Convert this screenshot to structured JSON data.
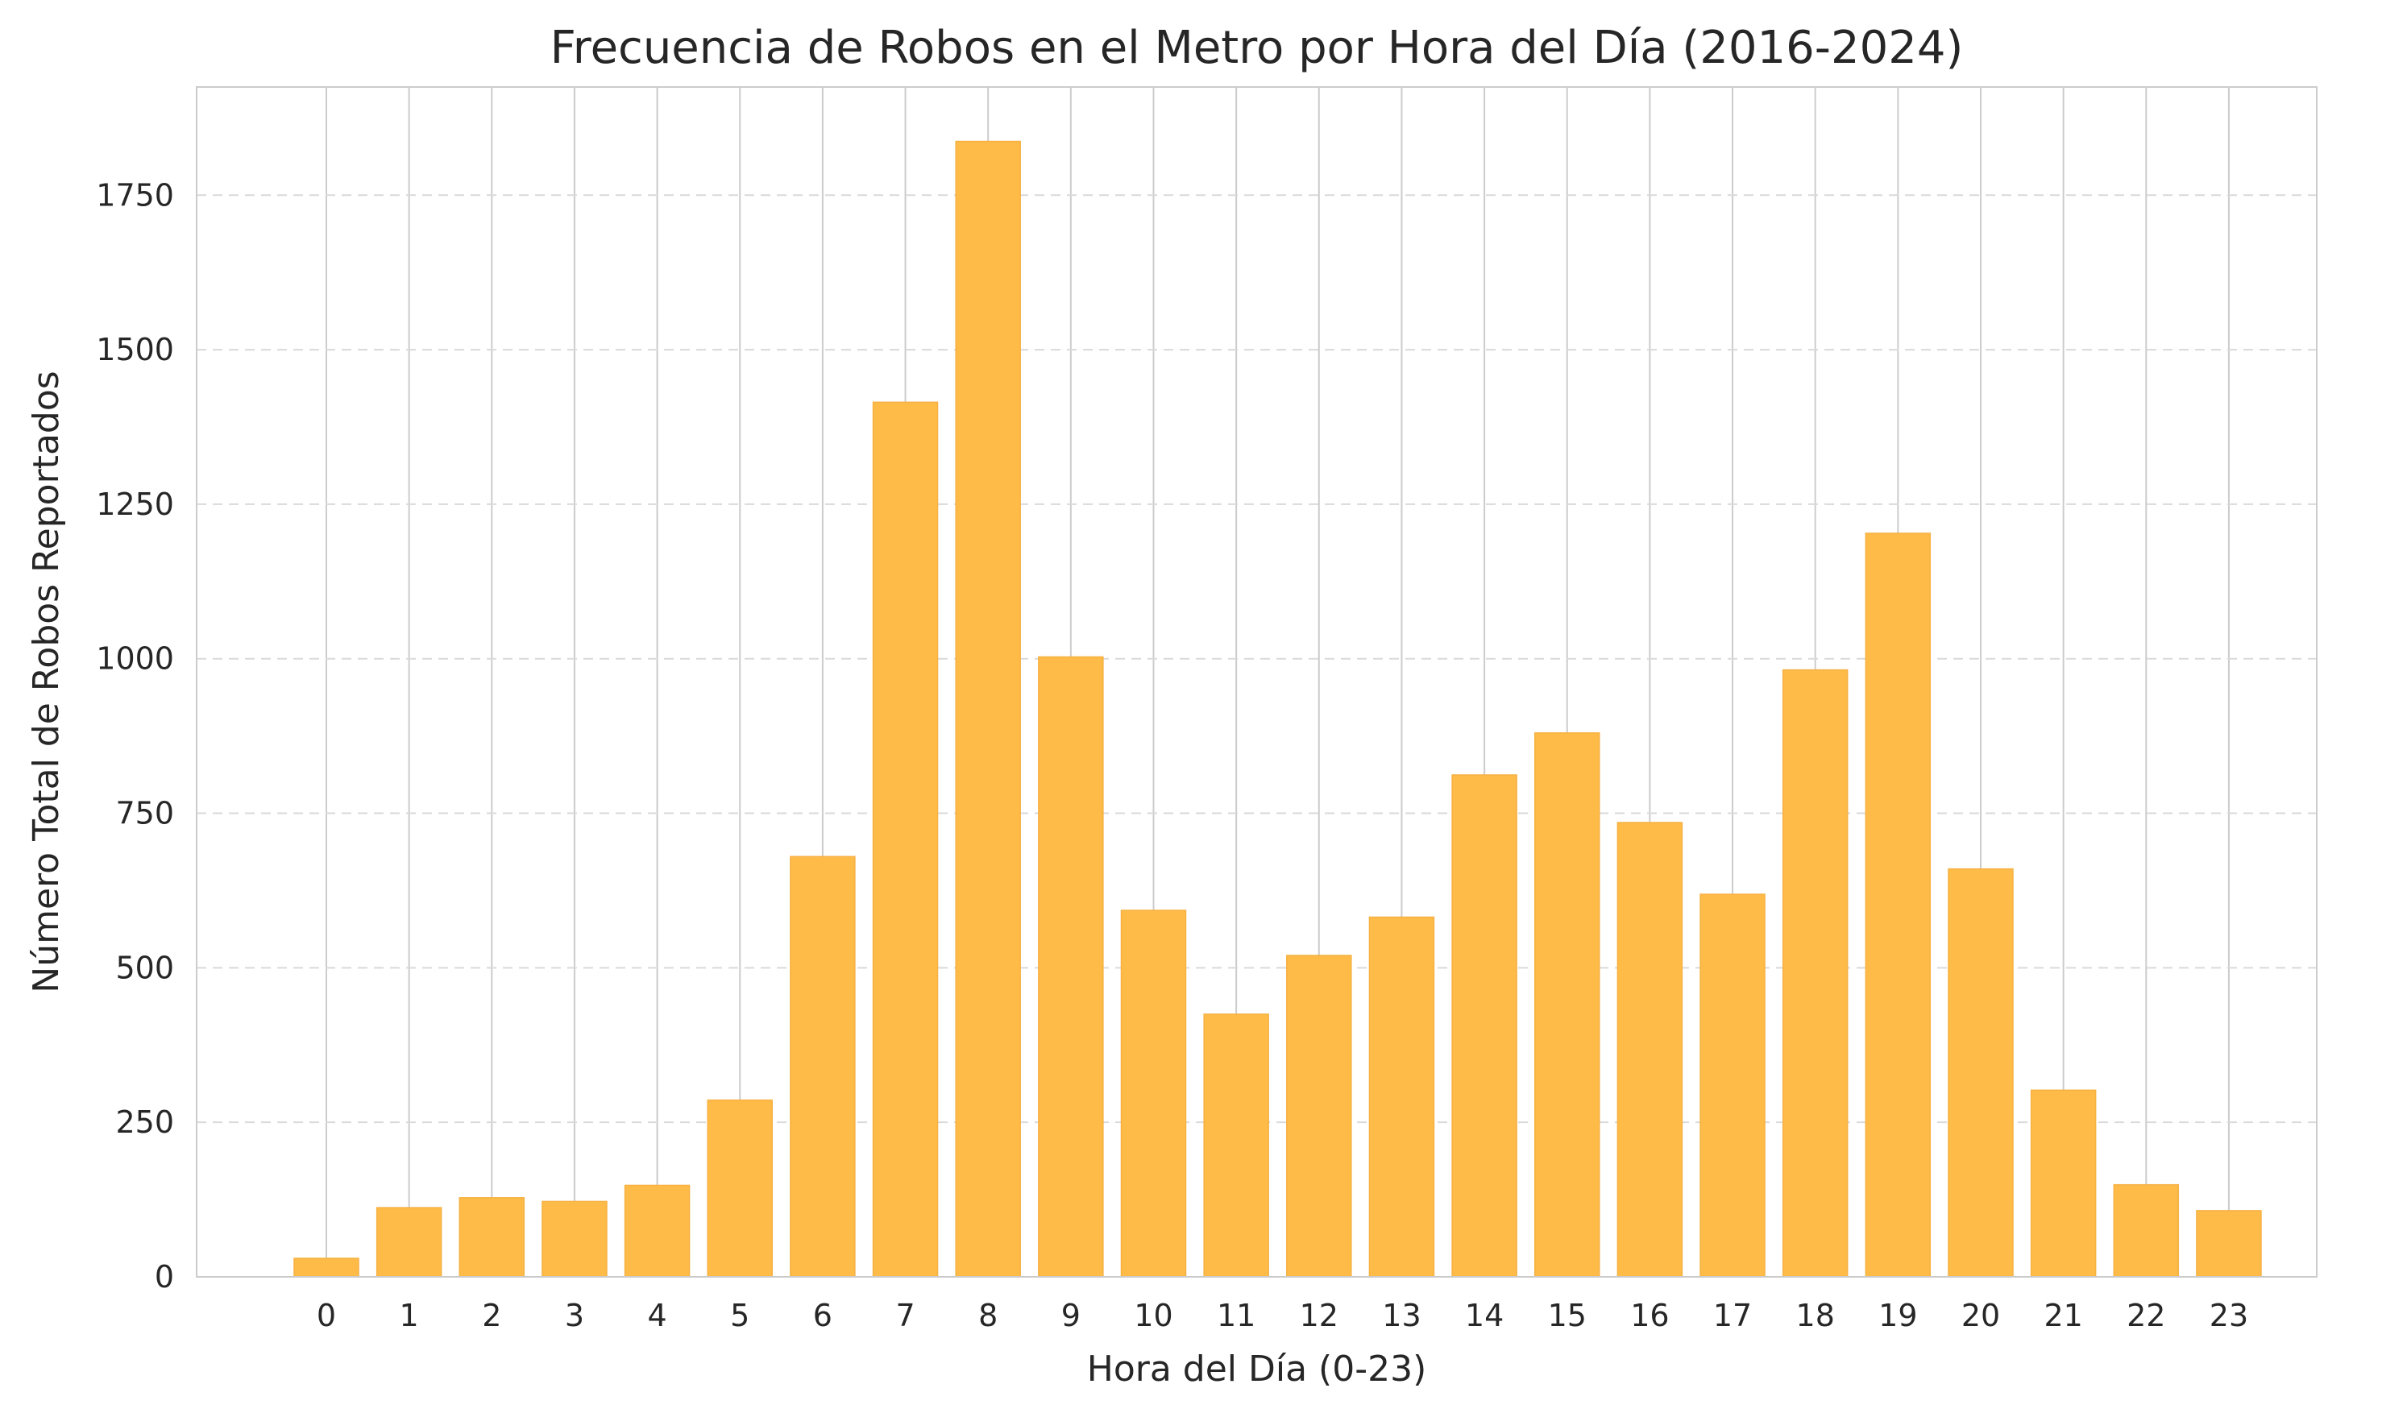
{
  "chart_data": {
    "type": "bar",
    "title": "Frecuencia de Robos en el Metro por Hora del Día (2016-2024)",
    "xlabel": "Hora del Día (0-23)",
    "ylabel": "Número Total de Robos Reportados",
    "categories": [
      "0",
      "1",
      "2",
      "3",
      "4",
      "5",
      "6",
      "7",
      "8",
      "9",
      "10",
      "11",
      "12",
      "13",
      "14",
      "15",
      "16",
      "17",
      "18",
      "19",
      "20",
      "21",
      "22",
      "23"
    ],
    "values": [
      30,
      112,
      128,
      122,
      148,
      286,
      680,
      1415,
      1837,
      1003,
      593,
      425,
      520,
      582,
      812,
      880,
      735,
      619,
      982,
      1203,
      660,
      302,
      149,
      107
    ],
    "yticks": [
      0,
      250,
      500,
      750,
      1000,
      1250,
      1500,
      1750
    ],
    "ylim": [
      0,
      1925
    ],
    "grid": true,
    "colors": {
      "bar": "#ffbb47",
      "bar_edge": "#f6b143",
      "grid_horizontal": "#d9d9d9",
      "grid_vertical": "#cccccc",
      "axes": "#cccccc",
      "text": "#262626"
    }
  }
}
